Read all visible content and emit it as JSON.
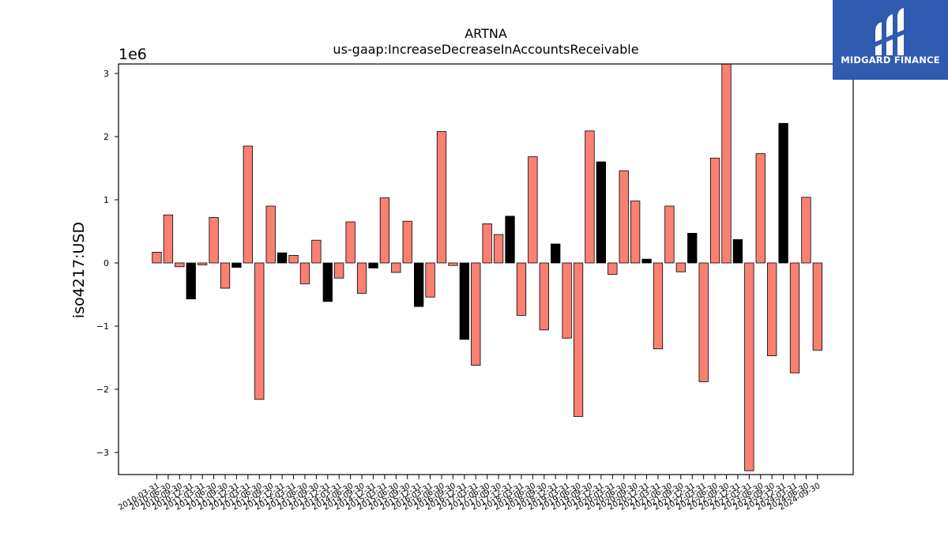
{
  "chart_data": {
    "type": "bar",
    "title": "ARTNA",
    "subtitle": "us-gaap:IncreaseDecreaseInAccountsReceivable",
    "ylabel": "iso4217:USD",
    "xlabel": "",
    "offset_label": "1e6",
    "ylim": [
      -3.35,
      3.15
    ],
    "yticks": [
      -3,
      -2,
      -1,
      0,
      1,
      2,
      3
    ],
    "ytick_labels": [
      "−3",
      "−2",
      "−1",
      "0",
      "1",
      "2",
      "3"
    ],
    "grid": false,
    "colors": {
      "positive": "#fa8072",
      "negative": "#000000"
    },
    "categories": [
      "2010-03-31",
      "2010-06-30",
      "2010-09-30",
      "2010-12-31",
      "2011-03-31",
      "2011-06-30",
      "2011-09-30",
      "2011-12-31",
      "2012-03-31",
      "2012-06-30",
      "2012-09-30",
      "2012-12-31",
      "2013-03-31",
      "2013-06-30",
      "2013-09-30",
      "2013-12-31",
      "2014-03-31",
      "2014-06-30",
      "2014-09-30",
      "2014-12-31",
      "2015-03-31",
      "2015-06-30",
      "2015-09-30",
      "2015-12-31",
      "2016-03-31",
      "2016-06-30",
      "2016-09-30",
      "2016-12-31",
      "2017-03-31",
      "2017-06-30",
      "2017-09-30",
      "2017-12-31",
      "2018-03-31",
      "2018-06-30",
      "2018-09-30",
      "2018-12-31",
      "2019-03-31",
      "2019-06-30",
      "2019-09-30",
      "2019-12-31",
      "2020-03-31",
      "2020-06-30",
      "2020-09-30",
      "2020-12-31",
      "2021-03-31",
      "2021-06-30",
      "2021-09-30",
      "2021-12-31",
      "2022-03-31",
      "2022-06-30",
      "2022-09-30",
      "2022-12-31",
      "2023-03-31",
      "2023-06-30",
      "2023-09-30",
      "2023-12-31",
      "2024-03-31",
      "2024-06-30",
      "2024-09-30"
    ],
    "values": [
      0.17,
      0.76,
      -0.06,
      -0.57,
      -0.03,
      0.72,
      -0.4,
      -0.07,
      1.85,
      -2.16,
      0.9,
      0.16,
      0.12,
      -0.33,
      0.36,
      -0.61,
      -0.24,
      0.65,
      -0.48,
      -0.08,
      1.03,
      -0.15,
      0.66,
      -0.69,
      -0.54,
      2.08,
      -0.04,
      -1.21,
      -1.62,
      0.62,
      0.45,
      0.74,
      -0.83,
      1.68,
      -1.06,
      0.3,
      -1.19,
      -2.43,
      2.09,
      1.6,
      -0.18,
      1.46,
      0.98,
      0.06,
      -1.36,
      0.9,
      -0.14,
      0.47,
      -1.88,
      1.66,
      3.15,
      0.37,
      -3.29,
      1.73,
      -1.47,
      2.21,
      -1.74,
      1.04,
      -1.38
    ],
    "fill_colors": [
      "#fa8072",
      "#fa8072",
      "#fa8072",
      "#000000",
      "#fa8072",
      "#fa8072",
      "#fa8072",
      "#000000",
      "#fa8072",
      "#fa8072",
      "#fa8072",
      "#000000",
      "#fa8072",
      "#fa8072",
      "#fa8072",
      "#000000",
      "#fa8072",
      "#fa8072",
      "#fa8072",
      "#000000",
      "#fa8072",
      "#fa8072",
      "#fa8072",
      "#000000",
      "#fa8072",
      "#fa8072",
      "#fa8072",
      "#000000",
      "#fa8072",
      "#fa8072",
      "#fa8072",
      "#000000",
      "#fa8072",
      "#fa8072",
      "#fa8072",
      "#000000",
      "#fa8072",
      "#fa8072",
      "#fa8072",
      "#000000",
      "#fa8072",
      "#fa8072",
      "#fa8072",
      "#000000",
      "#fa8072",
      "#fa8072",
      "#fa8072",
      "#000000",
      "#fa8072",
      "#fa8072",
      "#fa8072",
      "#000000",
      "#fa8072",
      "#fa8072",
      "#fa8072",
      "#000000",
      "#fa8072",
      "#fa8072",
      "#fa8072"
    ]
  },
  "logo": {
    "text": "MIDGARD FINANCE",
    "icon": "midgard-logo-icon",
    "background": "#2f5bb0"
  }
}
